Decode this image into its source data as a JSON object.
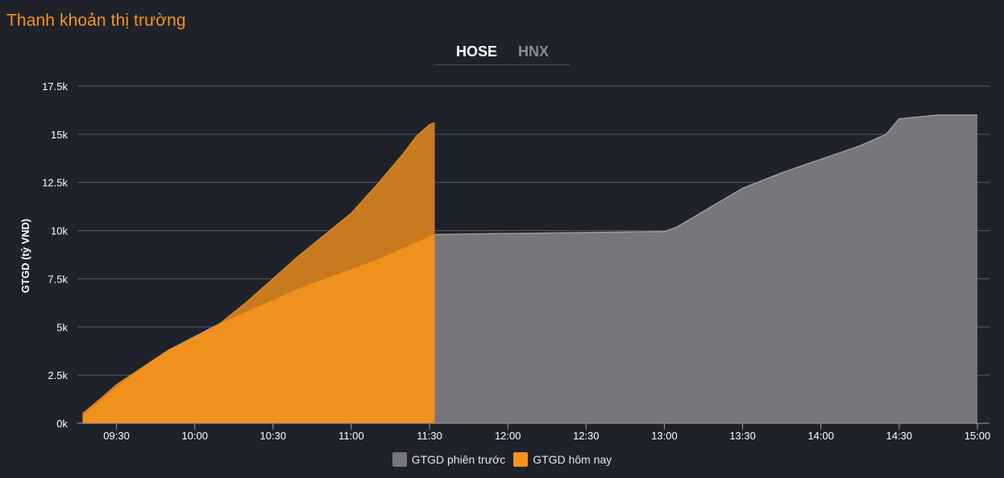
{
  "title": "Thanh khoản thị trường",
  "tabs": [
    {
      "label": "HOSE",
      "active": true
    },
    {
      "label": "HNX",
      "active": false
    }
  ],
  "colors": {
    "previous": "#77777b",
    "previous_line": "#9a9aa0",
    "today": "#f7941d",
    "today_overlap": "#c87a1f",
    "today_line": "#d98a1f",
    "grid": "#5a5c66",
    "axis": "#9a9ca4"
  },
  "chart_data": {
    "type": "area",
    "title": "",
    "ylabel": "GTGD (tỷ VND)",
    "xlabel": "",
    "ylim": [
      0,
      17500
    ],
    "xlim": [
      "09:15",
      "15:00"
    ],
    "y_ticks": [
      0,
      2500,
      5000,
      7500,
      10000,
      12500,
      15000,
      17500
    ],
    "y_tick_labels": [
      "0k",
      "2.5k",
      "5k",
      "7.5k",
      "10k",
      "12.5k",
      "15k",
      "17.5k"
    ],
    "x_ticks": [
      "09:30",
      "10:00",
      "10:30",
      "11:00",
      "11:30",
      "12:00",
      "12:30",
      "13:00",
      "13:30",
      "14:00",
      "14:30",
      "15:00"
    ],
    "grid": true,
    "legend_position": "bottom-center",
    "series": [
      {
        "name": "GTGD phiên trước",
        "x": [
          "09:17",
          "09:25",
          "09:30",
          "09:40",
          "09:50",
          "10:00",
          "10:10",
          "10:20",
          "10:30",
          "10:40",
          "10:50",
          "11:00",
          "11:10",
          "11:20",
          "11:30",
          "11:32",
          "12:00",
          "12:30",
          "13:00",
          "13:05",
          "13:15",
          "13:30",
          "13:45",
          "14:00",
          "14:15",
          "14:25",
          "14:30",
          "14:45",
          "15:00"
        ],
        "values": [
          400,
          1300,
          1900,
          2900,
          3800,
          4500,
          5200,
          5800,
          6400,
          7000,
          7500,
          8000,
          8500,
          9100,
          9700,
          9800,
          9850,
          9900,
          9950,
          10200,
          11000,
          12200,
          13000,
          13700,
          14400,
          15000,
          15800,
          16000,
          16000
        ]
      },
      {
        "name": "GTGD hôm nay",
        "x": [
          "09:17",
          "09:25",
          "09:30",
          "09:40",
          "09:50",
          "10:00",
          "10:10",
          "10:20",
          "10:30",
          "10:40",
          "10:50",
          "11:00",
          "11:10",
          "11:20",
          "11:25",
          "11:30",
          "11:32"
        ],
        "values": [
          500,
          1400,
          2000,
          2900,
          3800,
          4400,
          5200,
          6300,
          7500,
          8700,
          9800,
          10900,
          12400,
          14000,
          14900,
          15500,
          15600
        ]
      }
    ]
  }
}
